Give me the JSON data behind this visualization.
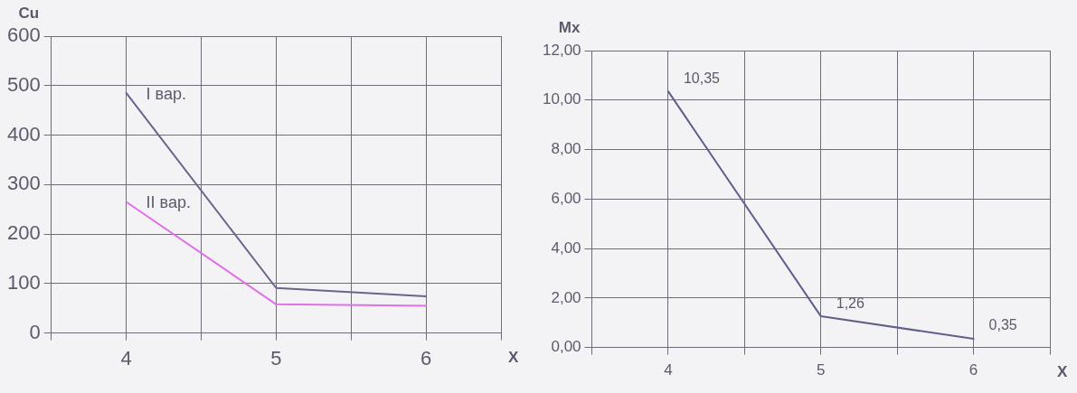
{
  "chart_data": [
    {
      "type": "line",
      "xlabel": "X",
      "ylabel": "Cu",
      "x": [
        4,
        5,
        6
      ],
      "series": [
        {
          "name": "I вар.",
          "color": "#66668c",
          "values": [
            485,
            91,
            74
          ]
        },
        {
          "name": "II вар.",
          "color": "#e070e8",
          "values": [
            265,
            58,
            55
          ]
        }
      ],
      "xlim": [
        3.5,
        6.5
      ],
      "xticks": [
        {
          "value": 3.5,
          "label": null
        },
        4,
        {
          "value": 4.5,
          "label": null
        },
        5,
        {
          "value": 5.5,
          "label": null
        },
        6,
        {
          "value": 6.5,
          "label": null
        }
      ],
      "ylim": [
        0,
        600
      ],
      "yticks": [
        0,
        100,
        200,
        300,
        400,
        500,
        600
      ],
      "grid": true,
      "legend": false,
      "marker": "none",
      "line_style": "solid"
    },
    {
      "type": "line",
      "xlabel": "X",
      "ylabel": "Mx",
      "x": [
        4,
        5,
        6
      ],
      "series": [
        {
          "color": "#5f5f8c",
          "values": [
            10.35,
            1.26,
            0.35
          ],
          "value_labels": [
            "10,35",
            "1,26",
            "0,35"
          ]
        }
      ],
      "xlim": [
        3.5,
        6.5
      ],
      "xticks": [
        {
          "value": 3.5,
          "label": null
        },
        4,
        {
          "value": 4.5,
          "label": null
        },
        5,
        {
          "value": 5.5,
          "label": null
        },
        6,
        {
          "value": 6.5,
          "label": null
        }
      ],
      "ylim": [
        0,
        12
      ],
      "yticks": [
        {
          "value": 0,
          "label": "0,00"
        },
        {
          "value": 2,
          "label": "2,00"
        },
        {
          "value": 4,
          "label": "4,00"
        },
        {
          "value": 6,
          "label": "6,00"
        },
        {
          "value": 8,
          "label": "8,00"
        },
        {
          "value": 10,
          "label": "10,00"
        },
        {
          "value": 12,
          "label": "12,00"
        }
      ],
      "grid": true,
      "legend": false,
      "marker": "none",
      "line_style": "solid"
    }
  ]
}
